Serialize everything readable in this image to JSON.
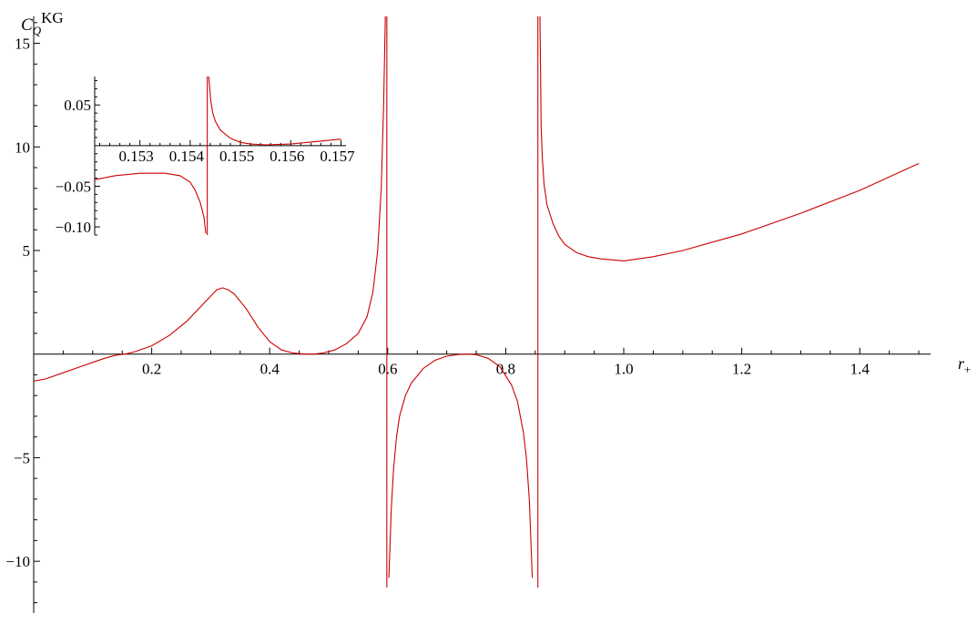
{
  "chart_data": [
    {
      "type": "line",
      "title": "",
      "xlabel": "r",
      "xlabel_sub": "+",
      "ylabel": "C",
      "ylabel_sub": "Q",
      "ylabel_sup": "KG",
      "xlim": [
        0.0,
        1.52
      ],
      "ylim": [
        -12.5,
        16.3
      ],
      "x_ticks": [
        {
          "v": 0.2,
          "label": "0.2"
        },
        {
          "v": 0.4,
          "label": "0.4"
        },
        {
          "v": 0.6,
          "label": "0.6"
        },
        {
          "v": 0.8,
          "label": "0.8"
        },
        {
          "v": 1.0,
          "label": "1.0"
        },
        {
          "v": 1.2,
          "label": "1.2"
        },
        {
          "v": 1.4,
          "label": "1.4"
        }
      ],
      "y_ticks": [
        {
          "v": 15,
          "label": "15"
        },
        {
          "v": 10,
          "label": "10"
        },
        {
          "v": 5,
          "label": "5"
        },
        {
          "v": -5,
          "label": "-5"
        },
        {
          "v": -10,
          "label": "-10"
        }
      ],
      "grid": false,
      "series": [
        {
          "x": [
            0.0,
            0.02,
            0.05,
            0.08,
            0.1,
            0.12,
            0.14,
            0.155,
            0.17,
            0.2,
            0.23,
            0.26,
            0.28,
            0.3,
            0.31,
            0.32,
            0.33,
            0.34,
            0.36,
            0.38,
            0.4,
            0.42,
            0.44,
            0.46,
            0.475,
            0.49,
            0.51,
            0.53,
            0.55,
            0.565,
            0.575,
            0.583,
            0.589,
            0.593,
            0.596
          ],
          "y": [
            -1.3,
            -1.2,
            -0.9,
            -0.6,
            -0.4,
            -0.2,
            -0.05,
            0.0,
            0.1,
            0.4,
            0.9,
            1.6,
            2.2,
            2.8,
            3.1,
            3.2,
            3.1,
            2.9,
            2.2,
            1.3,
            0.6,
            0.2,
            0.05,
            0.0,
            0.0,
            0.05,
            0.2,
            0.5,
            1.0,
            1.8,
            3.0,
            5.0,
            8.0,
            12.0,
            16.3
          ]
        },
        {
          "x": [
            0.602,
            0.606,
            0.61,
            0.615,
            0.62,
            0.63,
            0.64,
            0.66,
            0.68,
            0.7,
            0.72,
            0.735,
            0.75,
            0.77,
            0.79,
            0.81,
            0.82,
            0.83,
            0.835,
            0.84,
            0.845
          ],
          "y": [
            -10.8,
            -7.5,
            -5.5,
            -4.0,
            -3.0,
            -2.0,
            -1.4,
            -0.7,
            -0.3,
            -0.1,
            -0.02,
            0.0,
            -0.03,
            -0.2,
            -0.6,
            -1.5,
            -2.3,
            -3.8,
            -5.0,
            -7.0,
            -10.8
          ]
        },
        {
          "x": [
            0.858,
            0.86,
            0.862,
            0.865,
            0.87,
            0.88,
            0.89,
            0.9,
            0.92,
            0.94,
            0.96,
            0.98,
            1.0,
            1.05,
            1.1,
            1.2,
            1.3,
            1.4,
            1.5
          ],
          "y": [
            16.3,
            11.0,
            9.5,
            8.2,
            7.2,
            6.3,
            5.7,
            5.3,
            4.9,
            4.7,
            4.6,
            4.55,
            4.5,
            4.7,
            5.0,
            5.8,
            6.8,
            7.9,
            9.2
          ]
        }
      ],
      "asymptotes": [
        0.5985,
        0.8545
      ]
    },
    {
      "type": "line",
      "title": "",
      "xlim": [
        0.1521,
        0.1571
      ],
      "ylim": [
        -0.11,
        0.085
      ],
      "x_ticks": [
        {
          "v": 0.153,
          "label": "0.153"
        },
        {
          "v": 0.154,
          "label": "0.154"
        },
        {
          "v": 0.155,
          "label": "0.155"
        },
        {
          "v": 0.156,
          "label": "0.156"
        },
        {
          "v": 0.157,
          "label": "0.157"
        }
      ],
      "y_ticks": [
        {
          "v": 0.05,
          "label": "0.05"
        },
        {
          "v": -0.05,
          "label": "-0.05"
        },
        {
          "v": -0.1,
          "label": "-0.10"
        }
      ],
      "grid": false,
      "series": [
        {
          "x": [
            0.1521,
            0.1525,
            0.153,
            0.1535,
            0.1538,
            0.154,
            0.1541,
            0.1542,
            0.15425,
            0.15428,
            0.15431
          ],
          "y": [
            -0.042,
            -0.037,
            -0.034,
            -0.034,
            -0.037,
            -0.045,
            -0.055,
            -0.07,
            -0.082,
            -0.09,
            -0.108
          ]
        },
        {
          "x": [
            0.15437,
            0.15441,
            0.15445,
            0.1545,
            0.1546,
            0.1548,
            0.155,
            0.1552,
            0.1555,
            0.156,
            0.1565,
            0.157
          ],
          "y": [
            0.085,
            0.055,
            0.04,
            0.03,
            0.019,
            0.009,
            0.004,
            0.002,
            0.001,
            0.002,
            0.005,
            0.008
          ]
        }
      ],
      "asymptotes": [
        0.15434
      ]
    }
  ]
}
